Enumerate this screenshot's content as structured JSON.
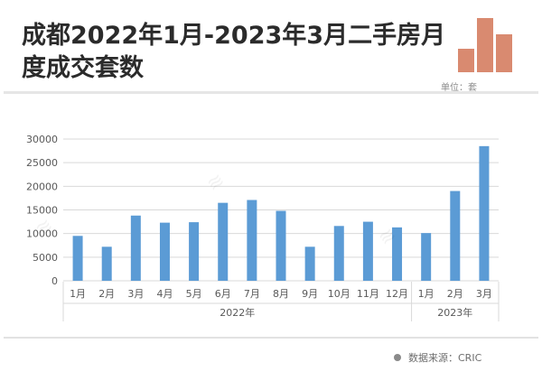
{
  "title": "成都2022年1月-2023年3月二手房月度成交套数",
  "unit_label": "单位：套",
  "source": "数据来源：CRIC",
  "colors": {
    "bar": "#5b9bd5",
    "logo": "#d98a70",
    "grid": "#d9d9d9",
    "text": "#595959"
  },
  "chart_data": {
    "type": "bar",
    "categories": [
      "1月",
      "2月",
      "3月",
      "4月",
      "5月",
      "6月",
      "7月",
      "8月",
      "9月",
      "10月",
      "11月",
      "12月",
      "1月",
      "2月",
      "3月"
    ],
    "groups": [
      {
        "label": "2022年",
        "count": 12
      },
      {
        "label": "2023年",
        "count": 3
      }
    ],
    "values": [
      9500,
      7200,
      13800,
      12300,
      12400,
      16500,
      17100,
      14800,
      7200,
      11600,
      12500,
      11300,
      10100,
      19000,
      28500
    ],
    "yticks": [
      0,
      5000,
      10000,
      15000,
      20000,
      25000,
      30000
    ],
    "ylim": [
      0,
      30000
    ],
    "grid": true
  }
}
